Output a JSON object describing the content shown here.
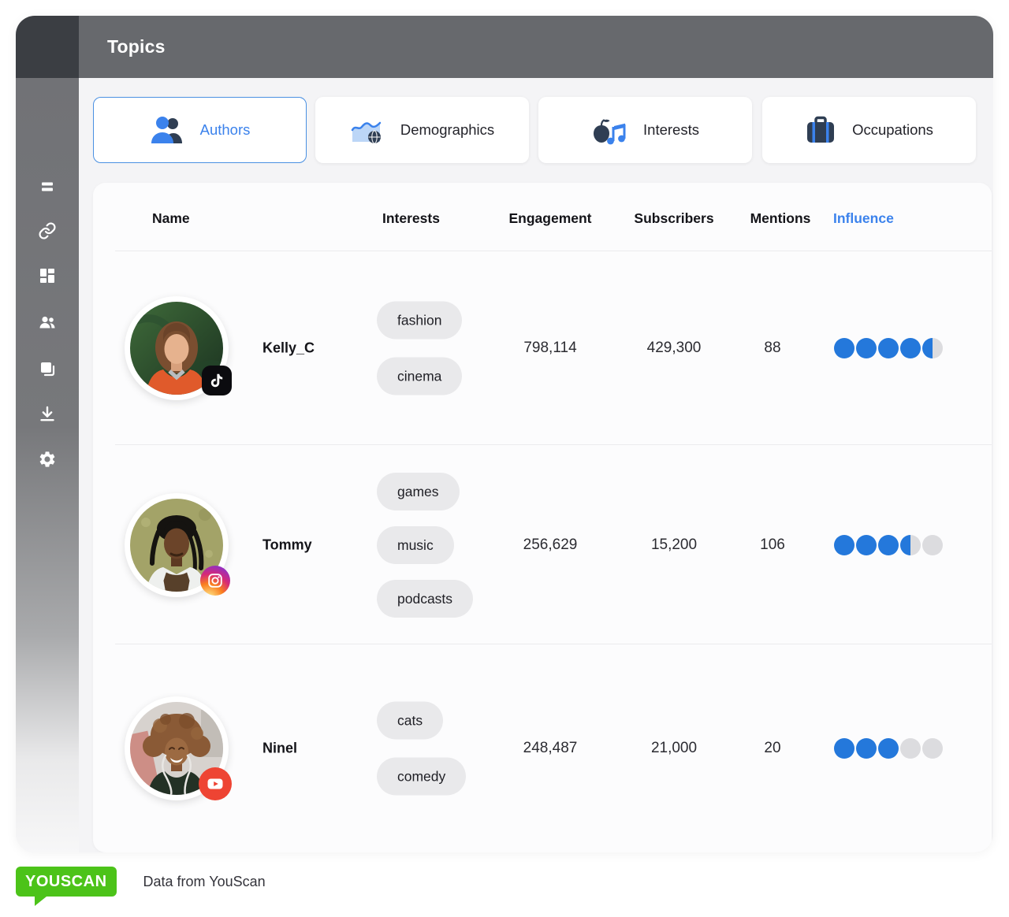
{
  "header": {
    "title": "Topics"
  },
  "sidebar": {
    "icons": [
      "menu",
      "link",
      "dashboard",
      "users",
      "copy",
      "download",
      "settings"
    ]
  },
  "tabs": [
    {
      "label": "Authors",
      "icon": "authors-icon",
      "active": true
    },
    {
      "label": "Demographics",
      "icon": "demographics-icon",
      "active": false
    },
    {
      "label": "Interests",
      "icon": "interests-icon",
      "active": false
    },
    {
      "label": "Occupations",
      "icon": "occupations-icon",
      "active": false
    }
  ],
  "table": {
    "columns": [
      "Name",
      "Interests",
      "Engagement",
      "Subscribers",
      "Mentions",
      "Influence"
    ],
    "influence_max": 5,
    "rows": [
      {
        "name": "Kelly_C",
        "platform": "tiktok",
        "interests": [
          "fashion",
          "cinema"
        ],
        "engagement": "798,114",
        "subscribers": "429,300",
        "mentions": "88",
        "influence": 4.5
      },
      {
        "name": "Tommy",
        "platform": "instagram",
        "interests": [
          "games",
          "music",
          "podcasts"
        ],
        "engagement": "256,629",
        "subscribers": "15,200",
        "mentions": "106",
        "influence": 3.5
      },
      {
        "name": "Ninel",
        "platform": "youtube",
        "interests": [
          "cats",
          "comedy"
        ],
        "engagement": "248,487",
        "subscribers": "21,000",
        "mentions": "20",
        "influence": 3
      }
    ]
  },
  "footer": {
    "logo_text": "YOUSCAN",
    "caption": "Data from YouScan"
  },
  "colors": {
    "accent_blue": "#3b82ec",
    "dot_blue": "#2478db",
    "dot_gray": "#dcdcdf",
    "dark_navy": "#2f3e53",
    "brand_green": "#4cc319",
    "youtube_red": "#ee4433",
    "tiktok_black": "#0b0b0f"
  }
}
